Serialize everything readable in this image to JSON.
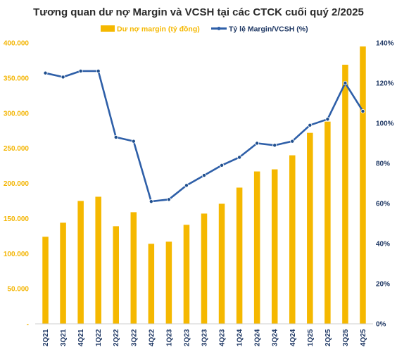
{
  "chart_data": {
    "type": "bar",
    "title": "Tương quan dư nợ Margin và VCSH tại các CTCK cuối quý 2/2025",
    "categories": [
      "2Q21",
      "3Q21",
      "4Q21",
      "1Q22",
      "2Q22",
      "3Q22",
      "4Q22",
      "1Q23",
      "2Q23",
      "3Q23",
      "4Q23",
      "1Q24",
      "2Q24",
      "3Q24",
      "4Q24",
      "1Q25",
      "2Q25",
      "3Q25",
      "4Q25"
    ],
    "series": [
      {
        "name": "Dư nợ margin (tỷ đồng)",
        "type": "bar",
        "axis": "left",
        "color": "#f5b800",
        "values": [
          124000,
          144000,
          175000,
          181000,
          139000,
          159000,
          114000,
          117000,
          141000,
          157000,
          171000,
          194000,
          217000,
          220000,
          240000,
          272000,
          288000,
          369000,
          395000
        ]
      },
      {
        "name": "Tỷ lệ Margin/VCSH (%)",
        "type": "line",
        "axis": "right",
        "color": "#2e5fa8",
        "values": [
          125,
          123,
          126,
          126,
          93,
          91,
          61,
          62,
          69,
          74,
          79,
          83,
          90,
          89,
          91,
          99,
          102,
          120,
          106
        ]
      }
    ],
    "left_axis": {
      "min": 0,
      "max": 400000,
      "ticks": [
        "-",
        "50.000",
        "100.000",
        "150.000",
        "200.000",
        "250.000",
        "300.000",
        "350.000",
        "400.000"
      ],
      "color": "#f3b400"
    },
    "right_axis": {
      "min": 0,
      "max": 140,
      "ticks": [
        "0%",
        "20%",
        "40%",
        "60%",
        "80%",
        "100%",
        "120%",
        "140%"
      ],
      "color": "#1f3864"
    },
    "grid": false,
    "legend_position": "top"
  }
}
